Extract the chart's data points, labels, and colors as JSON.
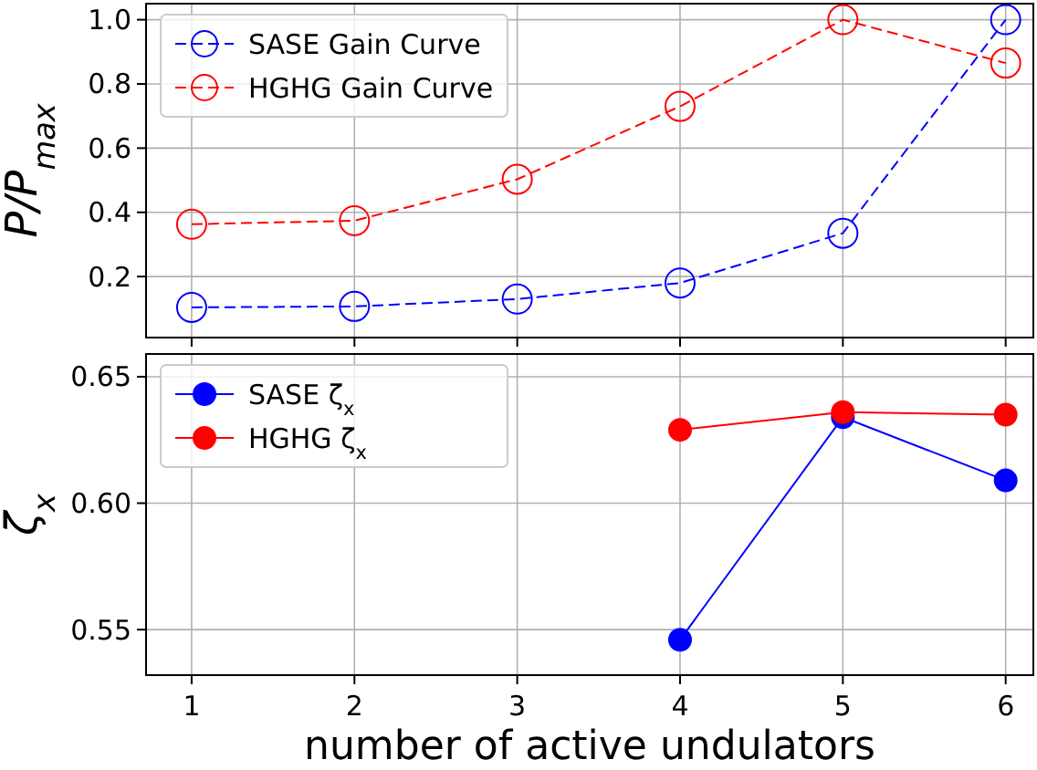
{
  "chart_data": [
    {
      "type": "line",
      "ylabel": "P/P$_{max}$",
      "x": [
        1,
        2,
        3,
        4,
        5,
        6
      ],
      "xlim": [
        0.72,
        6.17
      ],
      "xticks": [
        1,
        2,
        3,
        4,
        5,
        6
      ],
      "ylim": [
        0.01,
        1.05
      ],
      "yticks": [
        0.2,
        0.4,
        0.6,
        0.8,
        {
          "value": 1,
          "label": "1.0"
        }
      ],
      "tick_labels": "y",
      "grid": true,
      "legend": "top left",
      "marker": "circle",
      "line_style": "dashed",
      "series": [
        {
          "name": "SASE Gain Curve",
          "color": "#0000ff",
          "values": [
            0.104,
            0.107,
            0.13,
            0.18,
            0.335,
            1.0
          ]
        },
        {
          "name": "HGHG Gain Curve",
          "color": "#ff0000",
          "values": [
            0.363,
            0.374,
            0.503,
            0.73,
            1.0,
            0.865
          ]
        }
      ]
    },
    {
      "type": "line",
      "xlabel": "number of active undulators",
      "ylabel": "ζ$_{x}$",
      "xlim": [
        0.72,
        6.17
      ],
      "xticks": [
        1,
        2,
        3,
        4,
        5,
        6
      ],
      "ylim": [
        0.532,
        0.659
      ],
      "yticks": [
        0.55,
        {
          "value": 0.6,
          "label": "0.60"
        },
        0.65
      ],
      "grid": true,
      "legend": "top left",
      "marker": "circle",
      "line_style": "solid",
      "series": [
        {
          "name": "SASE ζ$_{x}$",
          "color": "#0000ff",
          "x": [
            4,
            5,
            6
          ],
          "values": [
            0.546,
            0.634,
            0.609
          ]
        },
        {
          "name": "HGHG ζ$_{x}$",
          "color": "#ff0000",
          "x": [
            4,
            5,
            6
          ],
          "values": [
            0.629,
            0.636,
            0.635
          ]
        }
      ]
    }
  ]
}
